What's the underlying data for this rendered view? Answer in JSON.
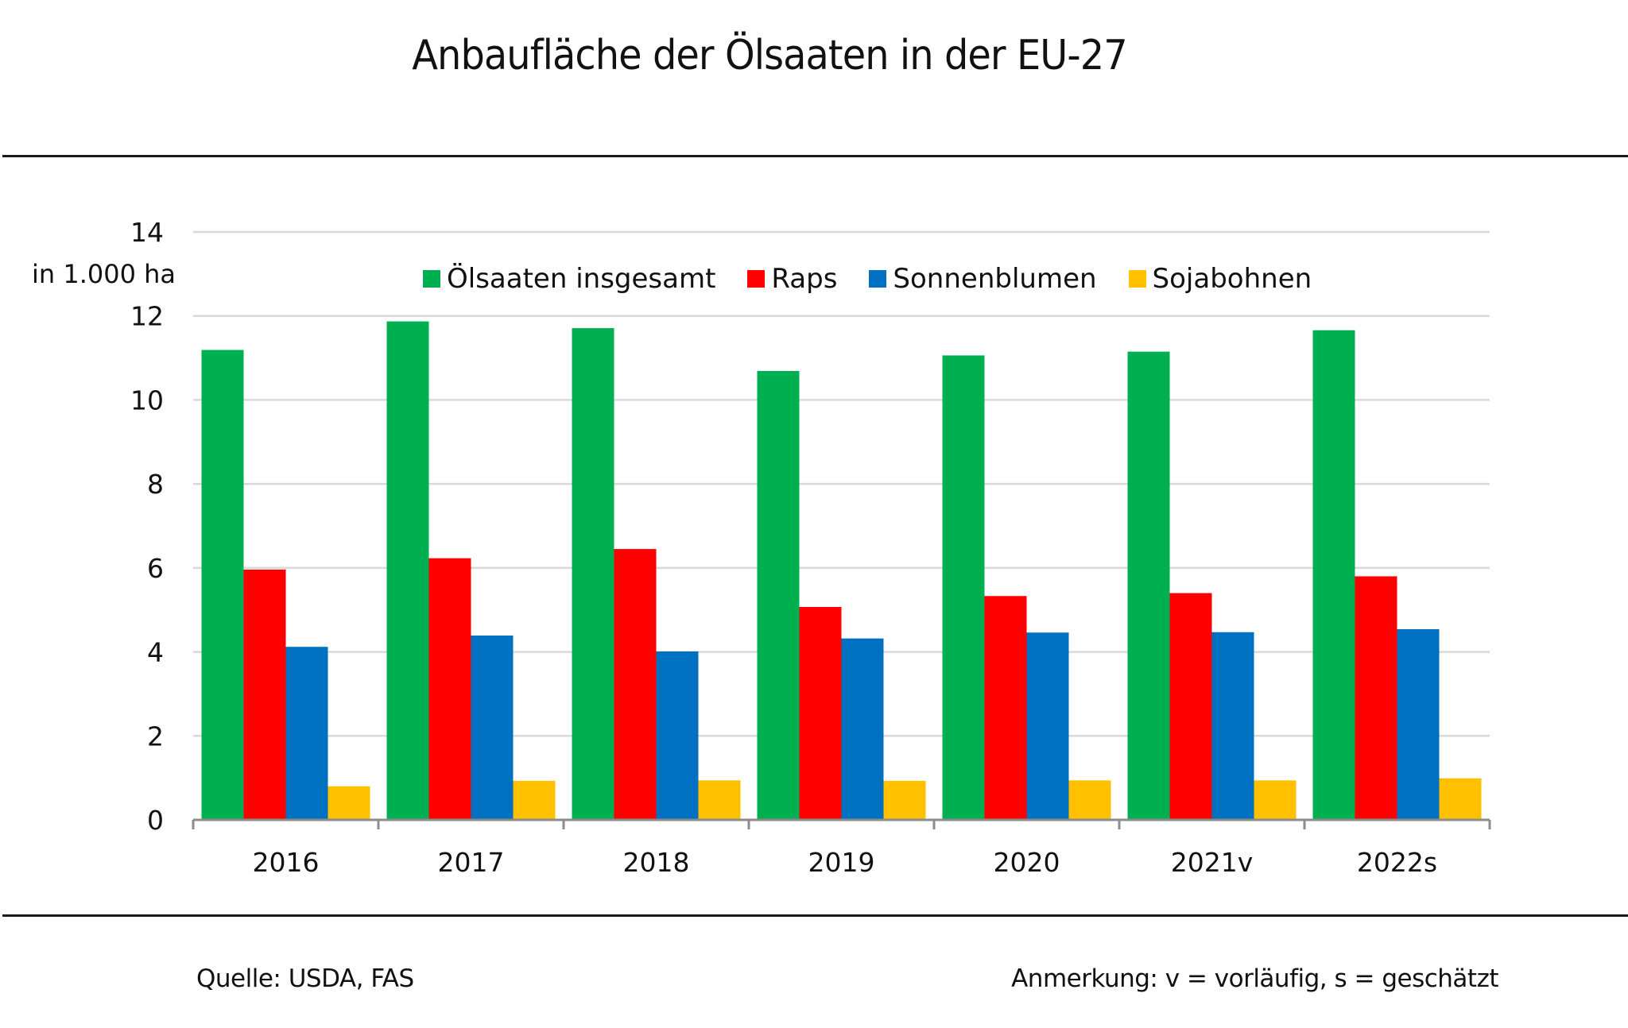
{
  "chart_data": {
    "type": "bar",
    "title": "Anbaufläche der Ölsaaten in der EU-27",
    "ylabel": "in 1.000 ha",
    "xlabel": "",
    "ylim": [
      0,
      14
    ],
    "yticks": [
      0,
      2,
      4,
      6,
      8,
      10,
      12,
      14
    ],
    "grid": true,
    "legend_position": "top-center",
    "categories": [
      "2016",
      "2017",
      "2018",
      "2019",
      "2020",
      "2021v",
      "2022s"
    ],
    "series": [
      {
        "name": "Ölsaaten insgesamt",
        "color": "#00B050",
        "values": [
          11.19,
          11.87,
          11.71,
          10.69,
          11.06,
          11.15,
          11.66
        ]
      },
      {
        "name": "Raps",
        "color": "#FF0000",
        "values": [
          5.96,
          6.23,
          6.45,
          5.07,
          5.33,
          5.4,
          5.8
        ]
      },
      {
        "name": "Sonnenblumen",
        "color": "#0070C0",
        "values": [
          4.12,
          4.39,
          4.01,
          4.32,
          4.46,
          4.47,
          4.54
        ]
      },
      {
        "name": "Sojabohnen",
        "color": "#FFC000",
        "values": [
          0.8,
          0.93,
          0.94,
          0.93,
          0.94,
          0.94,
          0.99
        ]
      }
    ]
  },
  "footer": {
    "source": "Quelle: USDA, FAS",
    "note": "Anmerkung: v = vorläufig, s = geschätzt"
  }
}
